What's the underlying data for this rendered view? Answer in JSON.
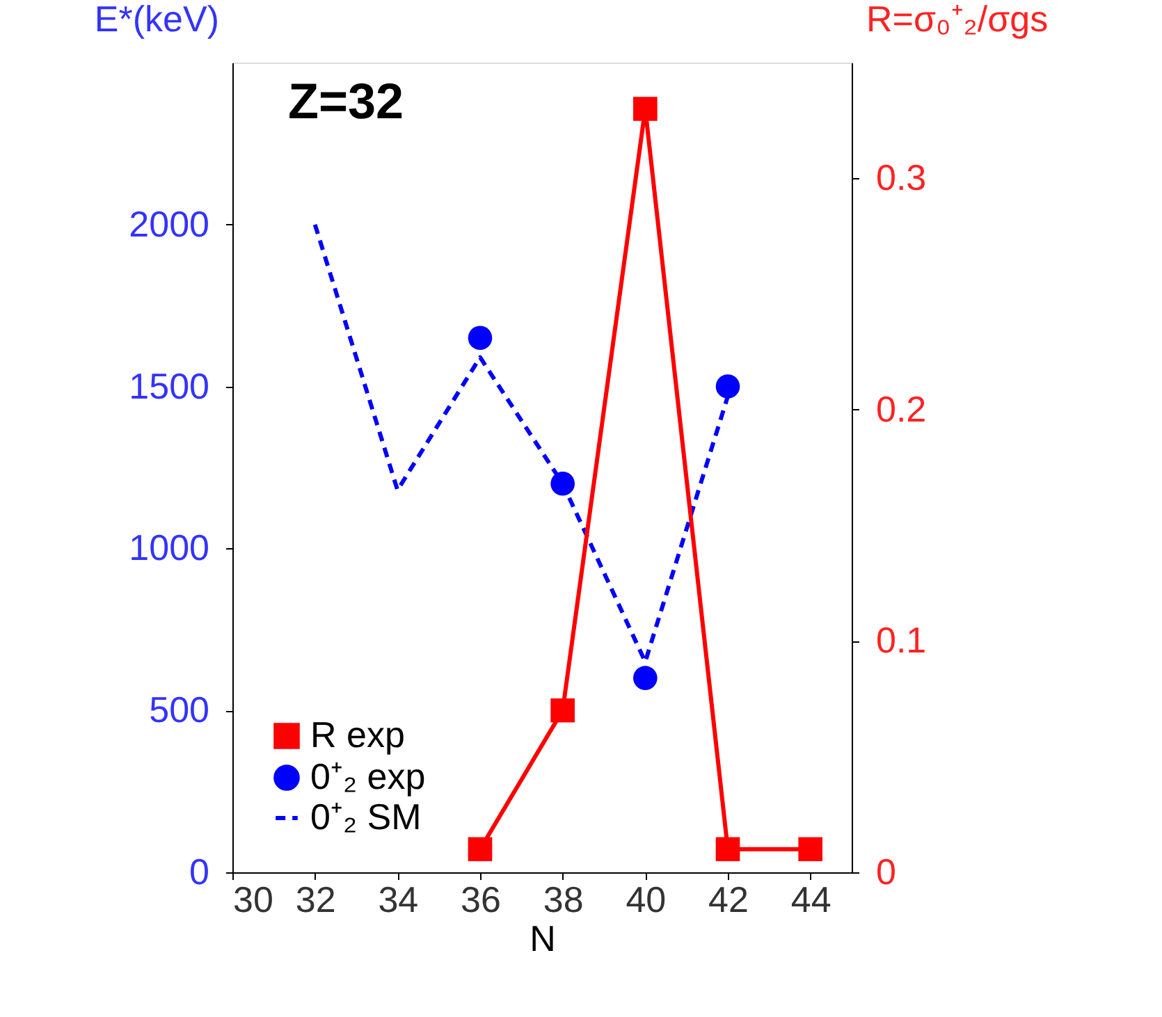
{
  "chart_data": {
    "type": "line",
    "xlabel": "N",
    "ylabel": "E*(keV)",
    "y2label": "R=σ₀⁺₂/σgs",
    "annotations": [
      "Z=32"
    ],
    "xlim": [
      30,
      45
    ],
    "xticks": [
      30,
      32,
      34,
      36,
      38,
      40,
      42,
      44
    ],
    "ylim": [
      0,
      2500
    ],
    "yticks": [
      0,
      500,
      1000,
      1500,
      2000
    ],
    "y2lim": [
      0,
      0.35
    ],
    "y2ticks": [
      0,
      0.1,
      0.2,
      0.3
    ],
    "grid": false,
    "legend": "bottom left",
    "series": [
      {
        "name": "R exp",
        "axis": "y2",
        "color": "#ff0000",
        "marker": "square",
        "line_style": "solid",
        "x": [
          36,
          38,
          40,
          42,
          44
        ],
        "values": [
          0.01,
          0.07,
          0.33,
          0.01,
          0.01
        ]
      },
      {
        "name": "0⁺₂ exp",
        "type": "scatter",
        "color": "#0000ff",
        "marker": "circle",
        "x": [
          36,
          38,
          40,
          42
        ],
        "values": [
          1650,
          1200,
          600,
          1500
        ]
      },
      {
        "name": "0⁺₂ SM",
        "color": "#0000ff",
        "marker": "none",
        "line_style": "dashed",
        "x": [
          32,
          34,
          36,
          38,
          40,
          42
        ],
        "values": [
          2000,
          1180,
          1590,
          1200,
          650,
          1470
        ]
      }
    ]
  }
}
